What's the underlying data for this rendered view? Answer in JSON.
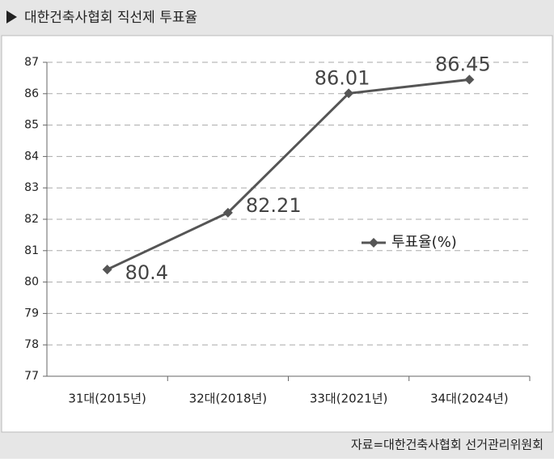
{
  "chart_data": {
    "type": "line",
    "title": "대한건축사협회 직선제 투표율",
    "source": "자료=대한건축사협회 선거관리위원회",
    "categories": [
      "31대(2015년)",
      "32대(2018년)",
      "33대(2021년)",
      "34대(2024년)"
    ],
    "series": [
      {
        "name": "투표율(%)",
        "color": "#555555",
        "values": [
          80.4,
          82.21,
          86.01,
          86.45
        ]
      }
    ],
    "ylim": [
      77,
      87
    ],
    "yticks": [
      77,
      78,
      79,
      80,
      81,
      82,
      83,
      84,
      85,
      86,
      87
    ],
    "grid": true,
    "legend": "right"
  }
}
